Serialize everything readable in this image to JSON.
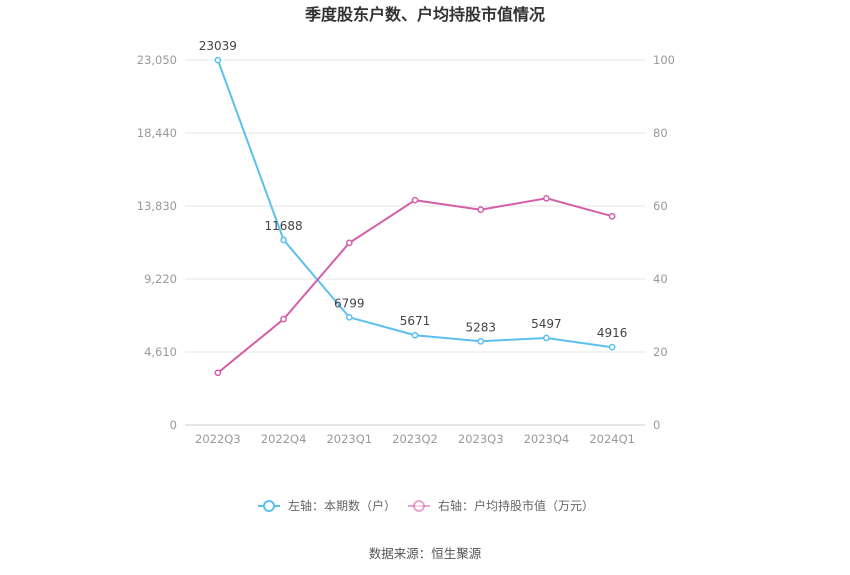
{
  "chart_data": {
    "type": "line",
    "title": "季度股东户数、户均持股市值情况",
    "categories": [
      "2022Q3",
      "2022Q4",
      "2023Q1",
      "2023Q2",
      "2023Q3",
      "2023Q4",
      "2024Q1"
    ],
    "y_left": {
      "ticks": [
        "0",
        "4,610",
        "9,220",
        "13,830",
        "18,440",
        "23,050"
      ],
      "ylim": [
        0,
        23050
      ]
    },
    "y_right": {
      "ticks": [
        "0",
        "20",
        "40",
        "60",
        "80",
        "100"
      ],
      "ylim": [
        0,
        100
      ]
    },
    "series": [
      {
        "name": "左轴：本期数（户）",
        "axis": "left",
        "color": "#5bc0f0",
        "values": [
          23039,
          11688,
          6799,
          5671,
          5283,
          5497,
          4916
        ],
        "labels": [
          "23039",
          "11688",
          "6799",
          "5671",
          "5283",
          "5497",
          "4916"
        ]
      },
      {
        "name": "右轴：户均持股市值（万元）",
        "axis": "right",
        "color": "#d45fa8",
        "values": [
          14.3,
          29.0,
          49.9,
          61.6,
          59.0,
          62.1,
          57.2
        ]
      }
    ],
    "legend_position": "bottom",
    "grid": true
  },
  "source": "数据来源：恒生聚源"
}
